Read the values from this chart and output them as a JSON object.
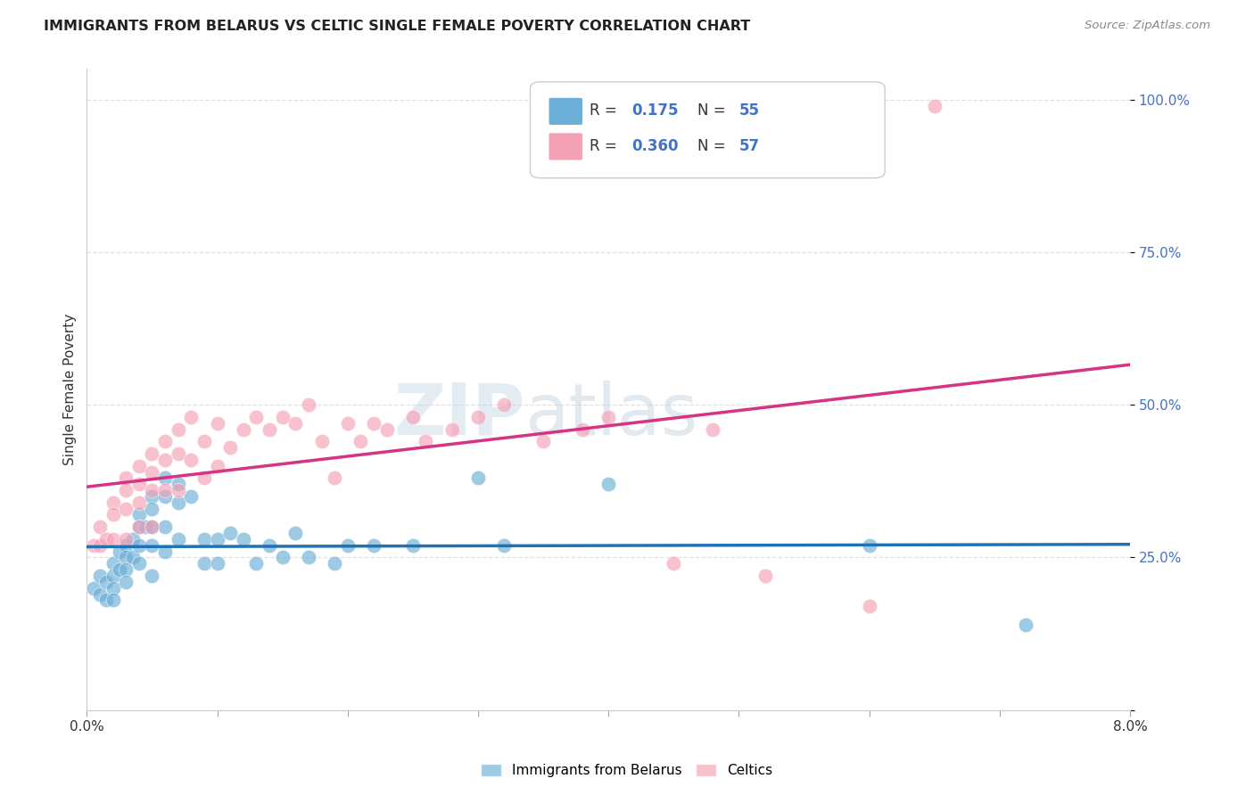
{
  "title": "IMMIGRANTS FROM BELARUS VS CELTIC SINGLE FEMALE POVERTY CORRELATION CHART",
  "source": "Source: ZipAtlas.com",
  "ylabel": "Single Female Poverty",
  "xlim": [
    0.0,
    0.08
  ],
  "ylim": [
    0.0,
    1.05
  ],
  "ytick_positions": [
    0.0,
    0.25,
    0.5,
    0.75,
    1.0
  ],
  "ytick_labels": [
    "",
    "25.0%",
    "50.0%",
    "75.0%",
    "100.0%"
  ],
  "series1_name": "Immigrants from Belarus",
  "series2_name": "Celtics",
  "series1_color": "#6baed6",
  "series2_color": "#f4a0b5",
  "series1_line_color": "#2171b5",
  "series2_line_color": "#d63384",
  "series2_dash_color": "#d0a0b0",
  "watermark_zip": "ZIP",
  "watermark_atlas": "atlas",
  "background_color": "#ffffff",
  "grid_color": "#e0e0e0",
  "series1_x": [
    0.0005,
    0.001,
    0.001,
    0.0015,
    0.0015,
    0.002,
    0.002,
    0.002,
    0.002,
    0.0025,
    0.0025,
    0.003,
    0.003,
    0.003,
    0.003,
    0.0035,
    0.0035,
    0.004,
    0.004,
    0.004,
    0.004,
    0.0045,
    0.005,
    0.005,
    0.005,
    0.005,
    0.005,
    0.006,
    0.006,
    0.006,
    0.006,
    0.007,
    0.007,
    0.007,
    0.008,
    0.009,
    0.009,
    0.01,
    0.01,
    0.011,
    0.012,
    0.013,
    0.014,
    0.015,
    0.016,
    0.017,
    0.019,
    0.02,
    0.022,
    0.025,
    0.03,
    0.032,
    0.04,
    0.06,
    0.072
  ],
  "series1_y": [
    0.2,
    0.22,
    0.19,
    0.21,
    0.18,
    0.24,
    0.22,
    0.2,
    0.18,
    0.26,
    0.23,
    0.27,
    0.25,
    0.23,
    0.21,
    0.28,
    0.25,
    0.32,
    0.3,
    0.27,
    0.24,
    0.3,
    0.35,
    0.33,
    0.3,
    0.27,
    0.22,
    0.38,
    0.35,
    0.3,
    0.26,
    0.37,
    0.34,
    0.28,
    0.35,
    0.28,
    0.24,
    0.28,
    0.24,
    0.29,
    0.28,
    0.24,
    0.27,
    0.25,
    0.29,
    0.25,
    0.24,
    0.27,
    0.27,
    0.27,
    0.38,
    0.27,
    0.37,
    0.27,
    0.14
  ],
  "series2_x": [
    0.0005,
    0.001,
    0.001,
    0.0015,
    0.002,
    0.002,
    0.002,
    0.003,
    0.003,
    0.003,
    0.003,
    0.004,
    0.004,
    0.004,
    0.004,
    0.005,
    0.005,
    0.005,
    0.005,
    0.006,
    0.006,
    0.006,
    0.007,
    0.007,
    0.007,
    0.008,
    0.008,
    0.009,
    0.009,
    0.01,
    0.01,
    0.011,
    0.012,
    0.013,
    0.014,
    0.015,
    0.016,
    0.017,
    0.018,
    0.019,
    0.02,
    0.021,
    0.022,
    0.023,
    0.025,
    0.026,
    0.028,
    0.03,
    0.032,
    0.035,
    0.038,
    0.04,
    0.045,
    0.048,
    0.052,
    0.06,
    0.065
  ],
  "series2_y": [
    0.27,
    0.3,
    0.27,
    0.28,
    0.34,
    0.32,
    0.28,
    0.38,
    0.36,
    0.33,
    0.28,
    0.4,
    0.37,
    0.34,
    0.3,
    0.42,
    0.39,
    0.36,
    0.3,
    0.44,
    0.41,
    0.36,
    0.46,
    0.42,
    0.36,
    0.48,
    0.41,
    0.44,
    0.38,
    0.47,
    0.4,
    0.43,
    0.46,
    0.48,
    0.46,
    0.48,
    0.47,
    0.5,
    0.44,
    0.38,
    0.47,
    0.44,
    0.47,
    0.46,
    0.48,
    0.44,
    0.46,
    0.48,
    0.5,
    0.44,
    0.46,
    0.48,
    0.24,
    0.46,
    0.22,
    0.17,
    0.99
  ]
}
